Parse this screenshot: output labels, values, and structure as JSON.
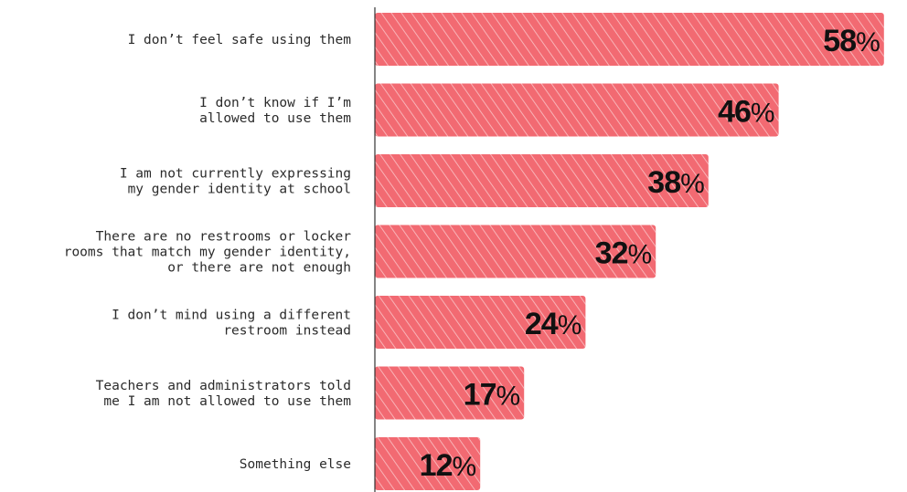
{
  "chart_data": {
    "type": "bar",
    "orientation": "horizontal",
    "categories": [
      [
        "I don’t feel safe using them"
      ],
      [
        "I don’t know if I’m",
        "allowed to use them"
      ],
      [
        "I am not currently expressing",
        "my gender identity at school"
      ],
      [
        "There are no restrooms or locker",
        "rooms that match my gender identity,",
        "or there are not enough"
      ],
      [
        "I don’t mind using a different",
        "restroom instead"
      ],
      [
        "Teachers and administrators told",
        "me I am not allowed to use them"
      ],
      [
        "Something else"
      ]
    ],
    "values": [
      58,
      46,
      38,
      32,
      24,
      17,
      12
    ],
    "value_suffix": "%",
    "xlim": [
      0,
      60
    ],
    "grid": false,
    "colors": {
      "bar": "#f26a72",
      "hatch": "#fbd2d4",
      "axis": "#333333"
    }
  }
}
